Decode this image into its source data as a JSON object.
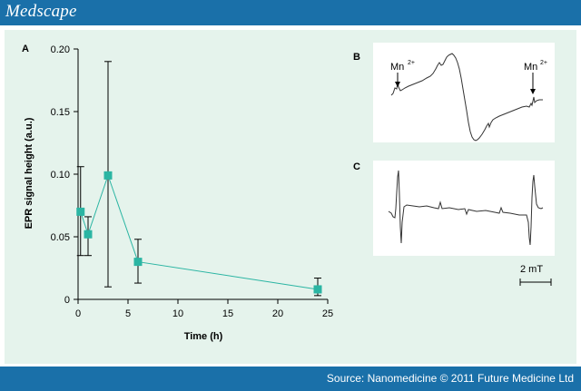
{
  "header": {
    "brand": "Medscape"
  },
  "footer": {
    "source": "Source: Nanomedicine © 2011 Future Medicine Ltd"
  },
  "panels": {
    "a": {
      "label": "A"
    },
    "b": {
      "label": "B",
      "marker_left": "Mn",
      "marker_right": "Mn",
      "marker_superscript": "2+"
    },
    "c": {
      "label": "C"
    },
    "scale_bar": {
      "label": "2 mT"
    }
  },
  "colors": {
    "header": "#1a70a9",
    "panel": "#e5f3ec",
    "series": "#2bb5a3"
  },
  "chart_data": {
    "type": "scatter",
    "title": "",
    "xlabel": "Time (h)",
    "ylabel": "EPR signal height (a.u.)",
    "xlim": [
      0,
      25
    ],
    "ylim": [
      0,
      0.2
    ],
    "x_ticks": [
      "0",
      "5",
      "10",
      "15",
      "20",
      "25"
    ],
    "y_ticks": [
      "0",
      "0.05",
      "0.10",
      "0.15",
      "0.20"
    ],
    "grid": false,
    "legend": "none",
    "series": [
      {
        "x": [
          0.25,
          1,
          3,
          6,
          24
        ],
        "y": [
          0.07,
          0.052,
          0.099,
          0.03,
          0.008
        ],
        "err_low": [
          0.035,
          0.035,
          0.01,
          0.013,
          0.003
        ],
        "err_high": [
          0.106,
          0.066,
          0.19,
          0.048,
          0.017
        ]
      }
    ]
  }
}
